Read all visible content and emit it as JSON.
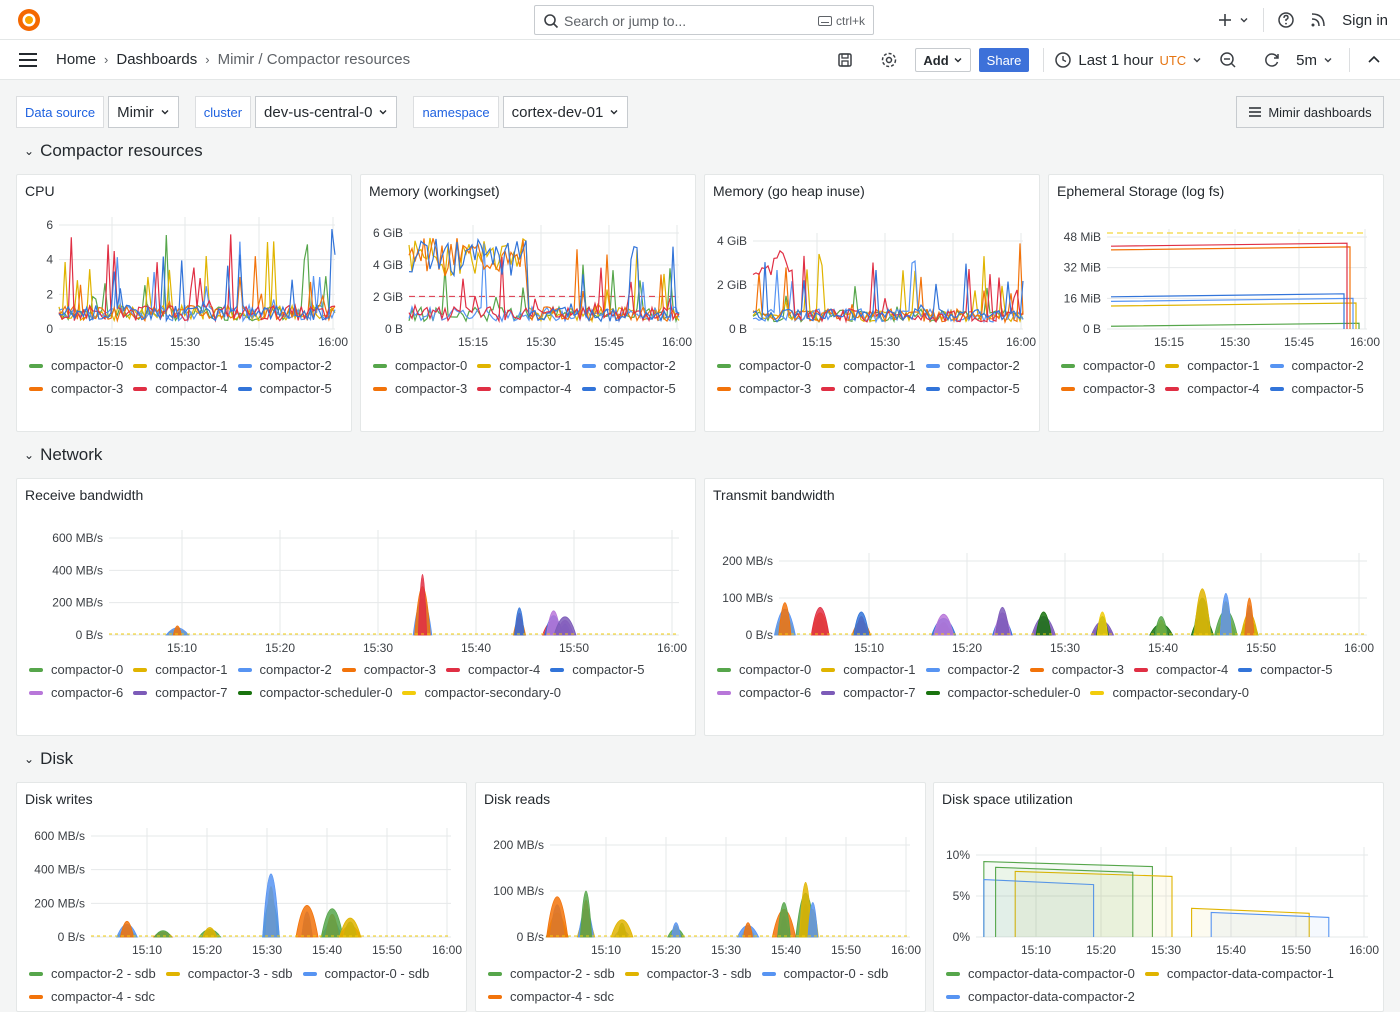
{
  "topbar": {
    "search_placeholder": "Search or jump to...",
    "search_shortcut": "ctrl+k",
    "sign_in": "Sign in"
  },
  "navbar": {
    "breadcrumbs": [
      "Home",
      "Dashboards",
      "Mimir / Compactor resources"
    ],
    "add_label": "Add",
    "share_label": "Share",
    "time_range": "Last 1 hour",
    "timezone": "UTC",
    "refresh_interval": "5m"
  },
  "variables": [
    {
      "label": "Data source",
      "value": "Mimir"
    },
    {
      "label": "cluster",
      "value": "dev-us-central-0"
    },
    {
      "label": "namespace",
      "value": "cortex-dev-01"
    }
  ],
  "dash_links_label": "Mimir dashboards",
  "rows": [
    "Compactor resources",
    "Network",
    "Disk"
  ],
  "colors": {
    "green": "#56a64b",
    "yellow": "#e0b400",
    "blue": "#5794f2",
    "orange": "#f2730a",
    "red": "#e02f44",
    "darkblue": "#3274d9",
    "purple": "#b877d9",
    "violet": "#7c5bb8",
    "darkgreen": "#19730e",
    "gold": "#f2cc0c",
    "accent": "#3d71d9"
  },
  "panels": {
    "cpu": {
      "title": "CPU",
      "y_ticks": [
        "6",
        "4",
        "2",
        "0"
      ],
      "x_ticks": [
        "15:15",
        "15:30",
        "15:45",
        "16:00"
      ],
      "legend": [
        "compactor-0",
        "compactor-1",
        "compactor-2",
        "compactor-3",
        "compactor-4",
        "compactor-5"
      ]
    },
    "mem_ws": {
      "title": "Memory (workingset)",
      "y_ticks": [
        "6 GiB",
        "4 GiB",
        "2 GiB",
        "0 B"
      ],
      "x_ticks": [
        "15:15",
        "15:30",
        "15:45",
        "16:00"
      ],
      "legend": [
        "compactor-0",
        "compactor-1",
        "compactor-2",
        "compactor-3",
        "compactor-4",
        "compactor-5"
      ]
    },
    "mem_heap": {
      "title": "Memory (go heap inuse)",
      "y_ticks": [
        "4 GiB",
        "2 GiB",
        "0 B"
      ],
      "x_ticks": [
        "15:15",
        "15:30",
        "15:45",
        "16:00"
      ],
      "legend": [
        "compactor-0",
        "compactor-1",
        "compactor-2",
        "compactor-3",
        "compactor-4",
        "compactor-5"
      ]
    },
    "eph": {
      "title": "Ephemeral Storage (log fs)",
      "y_ticks": [
        "48 MiB",
        "32 MiB",
        "16 MiB",
        "0 B"
      ],
      "x_ticks": [
        "15:15",
        "15:30",
        "15:45",
        "16:00"
      ],
      "legend": [
        "compactor-0",
        "compactor-1",
        "compactor-2",
        "compactor-3",
        "compactor-4",
        "compactor-5"
      ]
    },
    "rx": {
      "title": "Receive bandwidth",
      "y_ticks": [
        "600 MB/s",
        "400 MB/s",
        "200 MB/s",
        "0 B/s"
      ],
      "x_ticks": [
        "15:10",
        "15:20",
        "15:30",
        "15:40",
        "15:50",
        "16:00"
      ],
      "legend": [
        "compactor-0",
        "compactor-1",
        "compactor-2",
        "compactor-3",
        "compactor-4",
        "compactor-5",
        "compactor-6",
        "compactor-7",
        "compactor-scheduler-0",
        "compactor-secondary-0"
      ]
    },
    "tx": {
      "title": "Transmit bandwidth",
      "y_ticks": [
        "200 MB/s",
        "100 MB/s",
        "0 B/s"
      ],
      "x_ticks": [
        "15:10",
        "15:20",
        "15:30",
        "15:40",
        "15:50",
        "16:00"
      ],
      "legend": [
        "compactor-0",
        "compactor-1",
        "compactor-2",
        "compactor-3",
        "compactor-4",
        "compactor-5",
        "compactor-6",
        "compactor-7",
        "compactor-scheduler-0",
        "compactor-secondary-0"
      ]
    },
    "dw": {
      "title": "Disk writes",
      "y_ticks": [
        "600 MB/s",
        "400 MB/s",
        "200 MB/s",
        "0 B/s"
      ],
      "x_ticks": [
        "15:10",
        "15:20",
        "15:30",
        "15:40",
        "15:50",
        "16:00"
      ],
      "legend": [
        "compactor-2 - sdb",
        "compactor-3 - sdb",
        "compactor-0 - sdb",
        "compactor-4 - sdc"
      ]
    },
    "dr": {
      "title": "Disk reads",
      "y_ticks": [
        "200 MB/s",
        "100 MB/s",
        "0 B/s"
      ],
      "x_ticks": [
        "15:10",
        "15:20",
        "15:30",
        "15:40",
        "15:50",
        "16:00"
      ],
      "legend": [
        "compactor-2 - sdb",
        "compactor-3 - sdb",
        "compactor-0 - sdb",
        "compactor-4 - sdc"
      ]
    },
    "ds": {
      "title": "Disk space utilization",
      "y_ticks": [
        "10%",
        "5%",
        "0%"
      ],
      "x_ticks": [
        "15:10",
        "15:20",
        "15:30",
        "15:40",
        "15:50",
        "16:00"
      ],
      "legend": [
        "compactor-data-compactor-0",
        "compactor-data-compactor-1",
        "compactor-data-compactor-2"
      ]
    }
  }
}
